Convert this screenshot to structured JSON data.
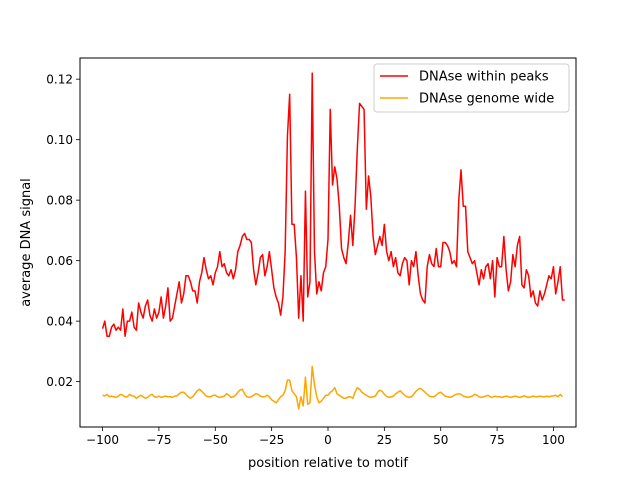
{
  "chart_data": {
    "type": "line",
    "title": "",
    "xlabel": "position relative to motif",
    "ylabel": "average DNA signal",
    "xlim": [
      -110,
      110
    ],
    "ylim": [
      0.005,
      0.127
    ],
    "xticks": [
      -100,
      -75,
      -50,
      -25,
      0,
      25,
      50,
      75,
      100
    ],
    "xtick_labels": [
      "−100",
      "−75",
      "−50",
      "−25",
      "0",
      "25",
      "50",
      "75",
      "100"
    ],
    "yticks": [
      0.02,
      0.04,
      0.06,
      0.08,
      0.1,
      0.12
    ],
    "ytick_labels": [
      "0.02",
      "0.04",
      "0.06",
      "0.08",
      "0.10",
      "0.12"
    ],
    "grid": false,
    "legend_position": "top-right",
    "x_start": -100,
    "x_step": 1,
    "series": [
      {
        "name": "DNAse within peaks",
        "color": "#ff0000",
        "values": [
          0.0375,
          0.04,
          0.035,
          0.035,
          0.038,
          0.039,
          0.037,
          0.038,
          0.037,
          0.044,
          0.035,
          0.04,
          0.04,
          0.043,
          0.038,
          0.037,
          0.046,
          0.043,
          0.041,
          0.045,
          0.047,
          0.042,
          0.04,
          0.044,
          0.041,
          0.043,
          0.048,
          0.041,
          0.045,
          0.051,
          0.04,
          0.041,
          0.045,
          0.049,
          0.053,
          0.046,
          0.049,
          0.055,
          0.055,
          0.053,
          0.05,
          0.05,
          0.046,
          0.053,
          0.056,
          0.061,
          0.057,
          0.054,
          0.055,
          0.052,
          0.056,
          0.058,
          0.063,
          0.058,
          0.059,
          0.056,
          0.055,
          0.057,
          0.054,
          0.057,
          0.063,
          0.065,
          0.068,
          0.069,
          0.067,
          0.067,
          0.066,
          0.057,
          0.052,
          0.056,
          0.061,
          0.062,
          0.055,
          0.058,
          0.063,
          0.057,
          0.051,
          0.048,
          0.046,
          0.042,
          0.048,
          0.063,
          0.101,
          0.115,
          0.072,
          0.072,
          0.061,
          0.041,
          0.055,
          0.04,
          0.083,
          0.048,
          0.053,
          0.122,
          0.063,
          0.049,
          0.053,
          0.05,
          0.056,
          0.058,
          0.067,
          0.11,
          0.085,
          0.091,
          0.087,
          0.078,
          0.064,
          0.061,
          0.059,
          0.066,
          0.075,
          0.065,
          0.078,
          0.097,
          0.112,
          0.111,
          0.11,
          0.077,
          0.088,
          0.081,
          0.068,
          0.062,
          0.065,
          0.068,
          0.065,
          0.072,
          0.063,
          0.06,
          0.063,
          0.058,
          0.061,
          0.056,
          0.055,
          0.059,
          0.061,
          0.06,
          0.052,
          0.06,
          0.058,
          0.063,
          0.055,
          0.049,
          0.047,
          0.046,
          0.058,
          0.062,
          0.059,
          0.058,
          0.064,
          0.058,
          0.058,
          0.066,
          0.066,
          0.065,
          0.063,
          0.059,
          0.06,
          0.058,
          0.08,
          0.09,
          0.078,
          0.078,
          0.063,
          0.061,
          0.059,
          0.06,
          0.056,
          0.052,
          0.057,
          0.054,
          0.058,
          0.059,
          0.054,
          0.06,
          0.048,
          0.061,
          0.058,
          0.058,
          0.068,
          0.057,
          0.05,
          0.053,
          0.062,
          0.058,
          0.065,
          0.068,
          0.052,
          0.051,
          0.057,
          0.055,
          0.048,
          0.05,
          0.046,
          0.045,
          0.05,
          0.047,
          0.049,
          0.052,
          0.055,
          0.054,
          0.058,
          0.049,
          0.053,
          0.058,
          0.047,
          0.047
        ]
      },
      {
        "name": "DNAse genome wide",
        "color": "#ffa500",
        "values": [
          0.0155,
          0.0153,
          0.0158,
          0.015,
          0.0152,
          0.015,
          0.0148,
          0.0152,
          0.0158,
          0.0155,
          0.015,
          0.015,
          0.0158,
          0.0153,
          0.0152,
          0.0145,
          0.015,
          0.0155,
          0.015,
          0.0145,
          0.0148,
          0.0155,
          0.0158,
          0.015,
          0.0148,
          0.0152,
          0.0148,
          0.015,
          0.0152,
          0.015,
          0.015,
          0.0148,
          0.0152,
          0.0153,
          0.016,
          0.0165,
          0.0165,
          0.0158,
          0.015,
          0.0145,
          0.015,
          0.016,
          0.017,
          0.0175,
          0.0168,
          0.016,
          0.0152,
          0.015,
          0.015,
          0.0155,
          0.0155,
          0.015,
          0.0148,
          0.015,
          0.0152,
          0.016,
          0.0155,
          0.0148,
          0.015,
          0.0155,
          0.0165,
          0.0172,
          0.0175,
          0.016,
          0.015,
          0.0148,
          0.015,
          0.0155,
          0.016,
          0.0158,
          0.0152,
          0.015,
          0.015,
          0.0155,
          0.015,
          0.014,
          0.0135,
          0.013,
          0.014,
          0.015,
          0.0155,
          0.017,
          0.0205,
          0.0205,
          0.017,
          0.016,
          0.015,
          0.011,
          0.015,
          0.012,
          0.0215,
          0.0125,
          0.013,
          0.025,
          0.019,
          0.015,
          0.013,
          0.0135,
          0.0145,
          0.0155,
          0.0155,
          0.0165,
          0.017,
          0.018,
          0.016,
          0.0155,
          0.015,
          0.0145,
          0.0145,
          0.015,
          0.015,
          0.0145,
          0.0165,
          0.018,
          0.0175,
          0.0165,
          0.016,
          0.0155,
          0.015,
          0.0148,
          0.015,
          0.0152,
          0.0165,
          0.0172,
          0.0168,
          0.0158,
          0.0152,
          0.0148,
          0.015,
          0.0152,
          0.016,
          0.0165,
          0.017,
          0.0162,
          0.0155,
          0.015,
          0.0148,
          0.015,
          0.0158,
          0.0168,
          0.0175,
          0.0178,
          0.0172,
          0.0165,
          0.0158,
          0.0152,
          0.015,
          0.015,
          0.0155,
          0.0162,
          0.0165,
          0.0158,
          0.0152,
          0.015,
          0.0148,
          0.015,
          0.0155,
          0.0158,
          0.016,
          0.0158,
          0.0152,
          0.015,
          0.0148,
          0.015,
          0.0152,
          0.0158,
          0.0155,
          0.015,
          0.0148,
          0.015,
          0.0152,
          0.0155,
          0.015,
          0.0148,
          0.0152,
          0.015,
          0.015,
          0.0148,
          0.015,
          0.0152,
          0.015,
          0.0148,
          0.015,
          0.0152,
          0.015,
          0.0148,
          0.015,
          0.0153,
          0.015,
          0.0148,
          0.015,
          0.0152,
          0.015,
          0.015,
          0.0152,
          0.015,
          0.015,
          0.0152,
          0.015,
          0.0152,
          0.0153,
          0.0155,
          0.015,
          0.0158,
          0.015
        ]
      }
    ]
  }
}
